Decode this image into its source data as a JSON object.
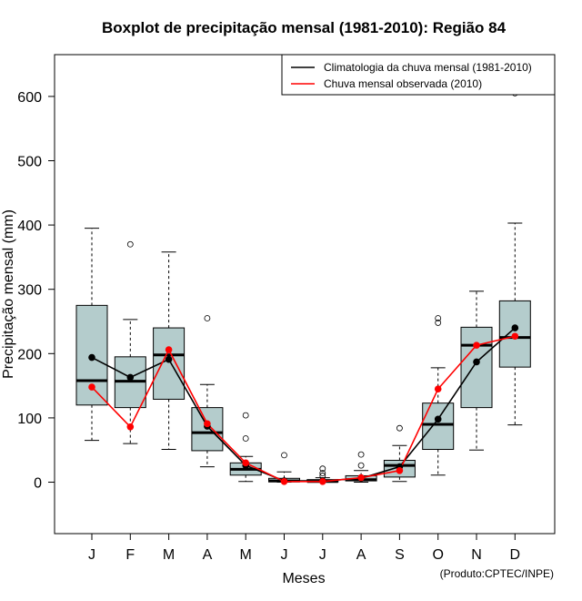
{
  "chart_data": {
    "type": "boxplot",
    "title": "Boxplot de precipitação mensal (1981-2010): Região 84",
    "xlabel": "Meses",
    "ylabel": "Precipitação mensal (mm)",
    "ylim": [
      -80,
      665
    ],
    "yticks": [
      0,
      100,
      200,
      300,
      400,
      500,
      600
    ],
    "ytick_labels": [
      "0",
      "100",
      "200",
      "300",
      "400",
      "500",
      "600"
    ],
    "categories": [
      "J",
      "F",
      "M",
      "A",
      "M",
      "J",
      "J",
      "A",
      "S",
      "O",
      "N",
      "D"
    ],
    "boxes": [
      {
        "whisker_low": 65,
        "q1": 120,
        "median": 158,
        "q3": 275,
        "whisker_high": 395,
        "outliers": []
      },
      {
        "whisker_low": 60,
        "q1": 116,
        "median": 157,
        "q3": 195,
        "whisker_high": 253,
        "outliers": [
          370
        ]
      },
      {
        "whisker_low": 51,
        "q1": 129,
        "median": 198,
        "q3": 240,
        "whisker_high": 358,
        "outliers": []
      },
      {
        "whisker_low": 24,
        "q1": 49,
        "median": 77,
        "q3": 116,
        "whisker_high": 152,
        "outliers": [
          255
        ]
      },
      {
        "whisker_low": 1,
        "q1": 11,
        "median": 20,
        "q3": 30,
        "whisker_high": 40,
        "outliers": [
          68,
          104
        ]
      },
      {
        "whisker_low": 0,
        "q1": 0.5,
        "median": 2,
        "q3": 6,
        "whisker_high": 16,
        "outliers": [
          42
        ]
      },
      {
        "whisker_low": 0,
        "q1": 0.5,
        "median": 1,
        "q3": 4,
        "whisker_high": 7,
        "outliers": [
          10,
          14,
          21
        ]
      },
      {
        "whisker_low": 0,
        "q1": 2,
        "median": 4,
        "q3": 10,
        "whisker_high": 18,
        "outliers": [
          26,
          43
        ]
      },
      {
        "whisker_low": 1,
        "q1": 8,
        "median": 26,
        "q3": 34,
        "whisker_high": 57,
        "outliers": [
          84
        ]
      },
      {
        "whisker_low": 11,
        "q1": 51,
        "median": 90,
        "q3": 123,
        "whisker_high": 178,
        "outliers": [
          248,
          255
        ]
      },
      {
        "whisker_low": 50,
        "q1": 116,
        "median": 213,
        "q3": 241,
        "whisker_high": 297,
        "outliers": []
      },
      {
        "whisker_low": 89,
        "q1": 179,
        "median": 225,
        "q3": 282,
        "whisker_high": 403,
        "outliers": [
          605
        ]
      }
    ],
    "series": [
      {
        "name": "Climatologia da chuva mensal (1981-2010)",
        "color": "#000000",
        "values": [
          194,
          163,
          191,
          87,
          26,
          2,
          2,
          6,
          24,
          98,
          187,
          240
        ]
      },
      {
        "name": "Chuva mensal observada (2010)",
        "color": "#ff0000",
        "values": [
          148,
          86,
          206,
          91,
          30,
          1,
          1,
          7,
          18,
          145,
          213,
          227
        ]
      }
    ],
    "legend_position": "top-right",
    "box_fill": "#b4cccc",
    "credit": "(Produto:CPTEC/INPE)"
  }
}
